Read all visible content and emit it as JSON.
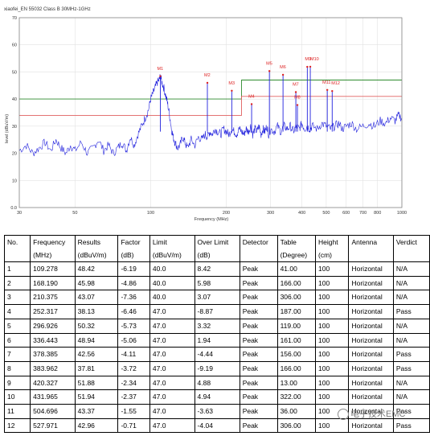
{
  "chart_data": {
    "type": "line",
    "title": "xiaofei_EN 55032 Class B 30MHz-1GHz",
    "xlabel": "Frequency (MHz)",
    "ylabel": "level (dBuV/m)",
    "xscale": "log",
    "xlim": [
      30,
      1000
    ],
    "ylim": [
      0,
      70
    ],
    "xticks": [
      "30",
      "50",
      "100",
      "200",
      "300",
      "400",
      "500",
      "600",
      "700",
      "800",
      "1000"
    ],
    "yticks": [
      "0.0",
      "10",
      "20",
      "30",
      "40",
      "50",
      "60",
      "70"
    ],
    "grid": true,
    "limit_lines": [
      {
        "color": "#2e8b2e",
        "points": [
          [
            30,
            40
          ],
          [
            230,
            40
          ],
          [
            230,
            47
          ],
          [
            1000,
            47
          ]
        ]
      },
      {
        "color": "#e06060",
        "points": [
          [
            30,
            34
          ],
          [
            230,
            34
          ],
          [
            230,
            41
          ],
          [
            1000,
            41
          ]
        ]
      }
    ],
    "markers": [
      {
        "label": "M1",
        "x": 109.278,
        "y": 48.42
      },
      {
        "label": "M2",
        "x": 168.19,
        "y": 45.98
      },
      {
        "label": "M3",
        "x": 210.375,
        "y": 43.07
      },
      {
        "label": "M4",
        "x": 252.317,
        "y": 38.13
      },
      {
        "label": "M5",
        "x": 296.926,
        "y": 50.32
      },
      {
        "label": "M6",
        "x": 336.443,
        "y": 48.94
      },
      {
        "label": "M7",
        "x": 378.385,
        "y": 42.56
      },
      {
        "label": "M8",
        "x": 383.962,
        "y": 37.81
      },
      {
        "label": "M9",
        "x": 420.327,
        "y": 51.88
      },
      {
        "label": "M10",
        "x": 431.965,
        "y": 51.94
      },
      {
        "label": "M11",
        "x": 504.696,
        "y": 43.37
      },
      {
        "label": "M12",
        "x": 527.971,
        "y": 42.96
      }
    ],
    "spectrum": [
      [
        30,
        21
      ],
      [
        32,
        23
      ],
      [
        34,
        20
      ],
      [
        36,
        22
      ],
      [
        38,
        24
      ],
      [
        40,
        21
      ],
      [
        42,
        25
      ],
      [
        44,
        22
      ],
      [
        46,
        20
      ],
      [
        48,
        23
      ],
      [
        50,
        21
      ],
      [
        53,
        24
      ],
      [
        56,
        20
      ],
      [
        59,
        22
      ],
      [
        62,
        25
      ],
      [
        65,
        21
      ],
      [
        68,
        23
      ],
      [
        71,
        20
      ],
      [
        74,
        22
      ],
      [
        77,
        24
      ],
      [
        80,
        21
      ],
      [
        83,
        26
      ],
      [
        86,
        23
      ],
      [
        89,
        27
      ],
      [
        92,
        30
      ],
      [
        95,
        33
      ],
      [
        98,
        36
      ],
      [
        100,
        40
      ],
      [
        102,
        42
      ],
      [
        104,
        44
      ],
      [
        106,
        46
      ],
      [
        108,
        47
      ],
      [
        109.3,
        48.4
      ],
      [
        111,
        46
      ],
      [
        113,
        44
      ],
      [
        115,
        41
      ],
      [
        117,
        38
      ],
      [
        119,
        34
      ],
      [
        121,
        29
      ],
      [
        123,
        26
      ],
      [
        125,
        24
      ],
      [
        128,
        22
      ],
      [
        131,
        23
      ],
      [
        134,
        26
      ],
      [
        137,
        24
      ],
      [
        140,
        22
      ],
      [
        145,
        25
      ],
      [
        150,
        23
      ],
      [
        155,
        26
      ],
      [
        160,
        25
      ],
      [
        165,
        27
      ],
      [
        168,
        26
      ],
      [
        172,
        28
      ],
      [
        176,
        27
      ],
      [
        180,
        29
      ],
      [
        185,
        28
      ],
      [
        190,
        27
      ],
      [
        195,
        29
      ],
      [
        200,
        28
      ],
      [
        205,
        27
      ],
      [
        210,
        29
      ],
      [
        215,
        28
      ],
      [
        220,
        27
      ],
      [
        225,
        29
      ],
      [
        230,
        28
      ],
      [
        235,
        27
      ],
      [
        240,
        29
      ],
      [
        245,
        28
      ],
      [
        250,
        30
      ],
      [
        255,
        27
      ],
      [
        260,
        29
      ],
      [
        265,
        28
      ],
      [
        270,
        30
      ],
      [
        275,
        27
      ],
      [
        280,
        29
      ],
      [
        285,
        28
      ],
      [
        290,
        30
      ],
      [
        295,
        27
      ],
      [
        300,
        29
      ],
      [
        310,
        28
      ],
      [
        320,
        30
      ],
      [
        330,
        28
      ],
      [
        340,
        30
      ],
      [
        350,
        29
      ],
      [
        360,
        30
      ],
      [
        370,
        28
      ],
      [
        380,
        30
      ],
      [
        390,
        29
      ],
      [
        400,
        31
      ],
      [
        410,
        29
      ],
      [
        420,
        30
      ],
      [
        430,
        29
      ],
      [
        440,
        30
      ],
      [
        460,
        29
      ],
      [
        480,
        31
      ],
      [
        500,
        30
      ],
      [
        520,
        29
      ],
      [
        540,
        30
      ],
      [
        560,
        31
      ],
      [
        580,
        29
      ],
      [
        600,
        30
      ],
      [
        630,
        31
      ],
      [
        660,
        29
      ],
      [
        700,
        30
      ],
      [
        740,
        31
      ],
      [
        780,
        30
      ],
      [
        820,
        32
      ],
      [
        860,
        31
      ],
      [
        900,
        33
      ],
      [
        940,
        32
      ],
      [
        970,
        34
      ],
      [
        1000,
        33
      ]
    ]
  },
  "table": {
    "headers": [
      [
        "No.",
        ""
      ],
      [
        "Frequency",
        "(MHz)"
      ],
      [
        "Results",
        "(dBuV/m)"
      ],
      [
        "Factor",
        "(dB)"
      ],
      [
        "Limit",
        "(dBuV/m)"
      ],
      [
        "Over Limit",
        "(dB)"
      ],
      [
        "Detector",
        ""
      ],
      [
        "Table",
        "(Degree)"
      ],
      [
        "Height",
        "(cm)"
      ],
      [
        "Antenna",
        ""
      ],
      [
        "Verdict",
        ""
      ]
    ],
    "rows": [
      [
        "1",
        "109.278",
        "48.42",
        "-6.19",
        "40.0",
        "8.42",
        "Peak",
        "41.00",
        "100",
        "Horizontal",
        "N/A"
      ],
      [
        "2",
        "168.190",
        "45.98",
        "-4.86",
        "40.0",
        "5.98",
        "Peak",
        "166.00",
        "100",
        "Horizontal",
        "N/A"
      ],
      [
        "3",
        "210.375",
        "43.07",
        "-7.36",
        "40.0",
        "3.07",
        "Peak",
        "306.00",
        "100",
        "Horizontal",
        "N/A"
      ],
      [
        "4",
        "252.317",
        "38.13",
        "-6.46",
        "47.0",
        "-8.87",
        "Peak",
        "187.00",
        "100",
        "Horizontal",
        "Pass"
      ],
      [
        "5",
        "296.926",
        "50.32",
        "-5.73",
        "47.0",
        "3.32",
        "Peak",
        "119.00",
        "100",
        "Horizontal",
        "N/A"
      ],
      [
        "6",
        "336.443",
        "48.94",
        "-5.06",
        "47.0",
        "1.94",
        "Peak",
        "161.00",
        "100",
        "Horizontal",
        "N/A"
      ],
      [
        "7",
        "378.385",
        "42.56",
        "-4.11",
        "47.0",
        "-4.44",
        "Peak",
        "156.00",
        "100",
        "Horizontal",
        "Pass"
      ],
      [
        "8",
        "383.962",
        "37.81",
        "-3.72",
        "47.0",
        "-9.19",
        "Peak",
        "166.00",
        "100",
        "Horizontal",
        "Pass"
      ],
      [
        "9",
        "420.327",
        "51.88",
        "-2.34",
        "47.0",
        "4.88",
        "Peak",
        "13.00",
        "100",
        "Horizontal",
        "N/A"
      ],
      [
        "10",
        "431.965",
        "51.94",
        "-2.37",
        "47.0",
        "4.94",
        "Peak",
        "322.00",
        "100",
        "Horizontal",
        "N/A"
      ],
      [
        "11",
        "504.696",
        "43.37",
        "-1.55",
        "47.0",
        "-3.63",
        "Peak",
        "36.00",
        "100",
        "Horizontal",
        "Pass"
      ],
      [
        "12",
        "527.971",
        "42.96",
        "-0.71",
        "47.0",
        "-4.04",
        "Peak",
        "306.00",
        "100",
        "Horizontal",
        "Pass"
      ]
    ]
  },
  "watermark": {
    "icon": "wechat-icon",
    "text": "电子技术EMC"
  },
  "colors": {
    "spectrum": "#2222dd",
    "marker": "#dd2222",
    "grid": "#e2e2e2"
  }
}
